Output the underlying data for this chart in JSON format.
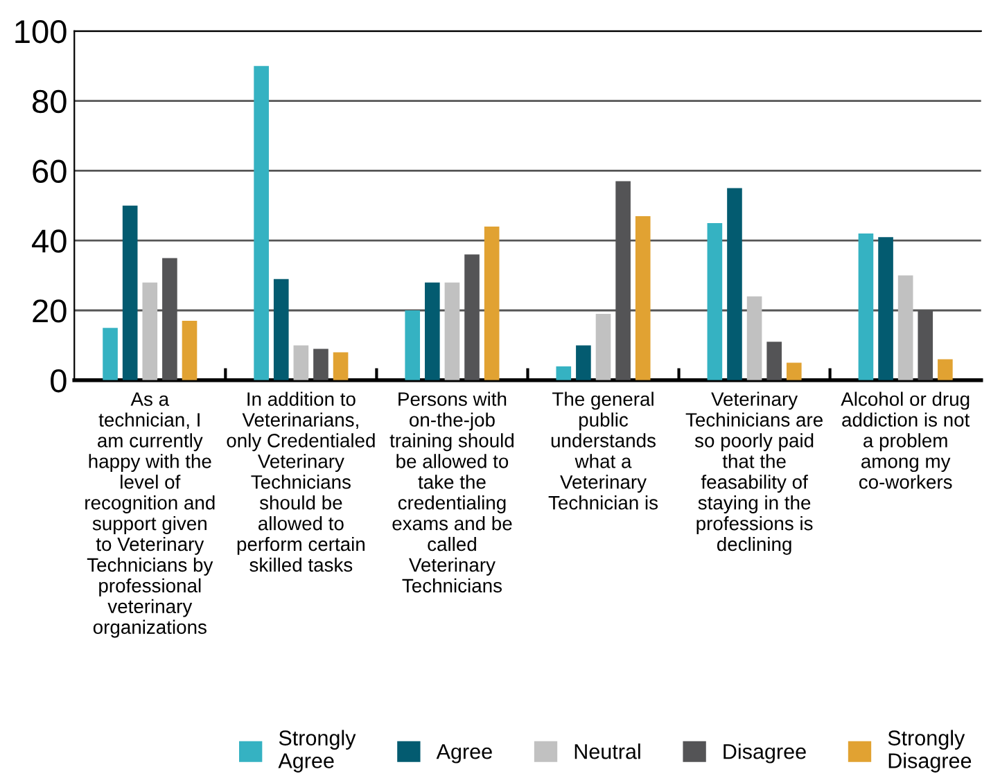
{
  "chart_data": {
    "type": "bar",
    "categories": [
      "As a\ntechnician, I\nam currently\nhappy with the\nlevel of\nrecognition and\nsupport given\nto Veterinary\nTechnicians by\nprofessional\nveterinary\norganizations",
      "In addition to\nVeterinarians,\nonly Credentialed\nVeterinary\nTechnicians\nshould be\nallowed to\nperform certain\nskilled tasks",
      "Persons with\non-the-job\ntraining should\nbe allowed to\ntake the\ncredentialing\nexams and be\ncalled\nVeterinary\nTechnicians",
      "The general\npublic\nunderstands\nwhat a\nVeterinary\nTechnician is",
      "Veterinary\nTechinicians are\nso poorly paid\nthat the\nfeasability of\nstaying in the\nprofessions is\ndeclining",
      "Alcohol or drug\naddiction is not\na problem\namong my\nco-workers"
    ],
    "series": [
      {
        "name": "Strongly\nAgree",
        "color": "#35b2c2",
        "values": [
          15,
          90,
          20,
          4,
          45,
          42
        ]
      },
      {
        "name": "Agree",
        "color": "#035b70",
        "values": [
          50,
          29,
          28,
          10,
          55,
          41
        ]
      },
      {
        "name": "Neutral",
        "color": "#c1c1c1",
        "values": [
          28,
          10,
          28,
          19,
          24,
          30
        ]
      },
      {
        "name": "Disagree",
        "color": "#545456",
        "values": [
          35,
          9,
          36,
          57,
          11,
          20
        ]
      },
      {
        "name": "Strongly\nDisagree",
        "color": "#e1a232",
        "values": [
          17,
          8,
          44,
          47,
          5,
          6
        ]
      }
    ],
    "ylim": [
      0,
      100
    ],
    "yticks": [
      0,
      20,
      40,
      60,
      80,
      100
    ],
    "grid": "y",
    "legend": "bottom"
  }
}
